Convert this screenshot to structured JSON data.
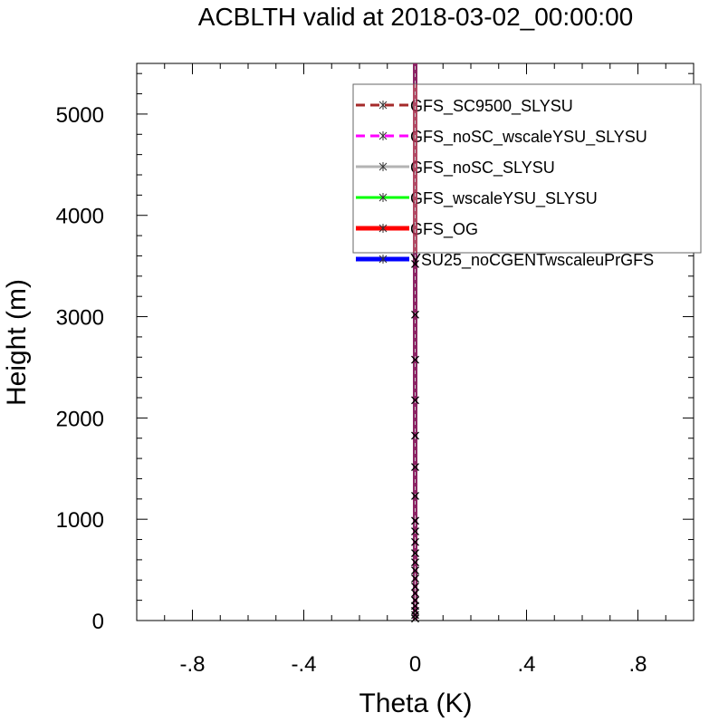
{
  "chart_data": {
    "type": "line",
    "title": "ACBLTH valid at 2018-03-02_00:00:00",
    "xlabel": "Theta (K)",
    "ylabel": "Height (m)",
    "xlim": [
      -1,
      1
    ],
    "ylim": [
      0,
      5500
    ],
    "x_ticks": [
      -0.8,
      -0.4,
      0,
      0.4,
      0.8
    ],
    "x_tick_labels": [
      "-.8",
      "-.4",
      "0",
      ".4",
      ".8"
    ],
    "y_ticks": [
      0,
      1000,
      2000,
      3000,
      4000,
      5000
    ],
    "y_tick_labels": [
      "0",
      "1000",
      "2000",
      "3000",
      "4000",
      "5000"
    ],
    "grid": false,
    "legend_position": "top-right",
    "marker_heights": [
      20,
      55,
      95,
      145,
      200,
      270,
      335,
      415,
      495,
      575,
      665,
      775,
      880,
      985,
      1230,
      1515,
      1825,
      2175,
      2575,
      3020,
      3520,
      4090,
      4680,
      5220
    ],
    "series": [
      {
        "name": "GFS_SC9500_SLYSU",
        "color": "#a52a2a",
        "style": "dashed",
        "width": 3,
        "x": [
          0,
          0
        ],
        "y": [
          0,
          5500
        ]
      },
      {
        "name": "GFS_noSC_wscaleYSU_SLYSU",
        "color": "#ff00ff",
        "style": "dashed",
        "width": 3,
        "x": [
          0,
          0
        ],
        "y": [
          0,
          5500
        ]
      },
      {
        "name": "GFS_noSC_SLYSU",
        "color": "#b3b3b3",
        "style": "solid",
        "width": 3,
        "x": [
          0,
          0
        ],
        "y": [
          0,
          5500
        ]
      },
      {
        "name": "GFS_wscaleYSU_SLYSU",
        "color": "#00ff00",
        "style": "solid",
        "width": 3,
        "x": [
          0,
          0
        ],
        "y": [
          0,
          5500
        ]
      },
      {
        "name": "GFS_OG",
        "color": "#ff0000",
        "style": "solid",
        "width": 5,
        "x": [
          0,
          0
        ],
        "y": [
          0,
          5500
        ]
      },
      {
        "name": "YSU25_noCGENTwscaleuPrGFS",
        "color": "#0000ff",
        "style": "solid",
        "width": 5,
        "x": [
          0,
          0
        ],
        "y": [
          0,
          5500
        ]
      }
    ]
  }
}
